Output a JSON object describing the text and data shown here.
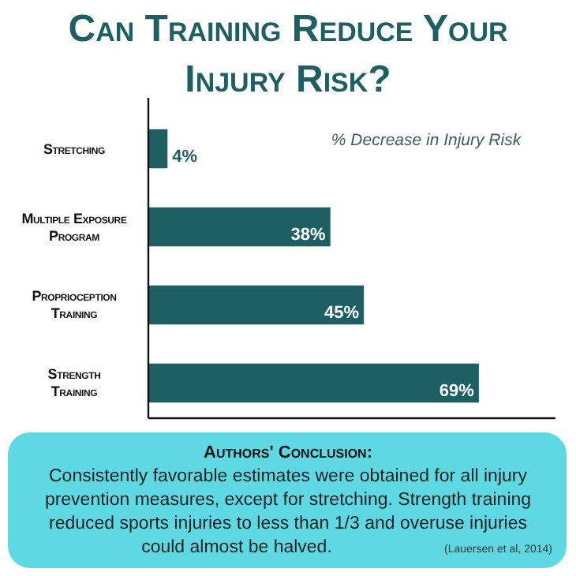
{
  "chart_data": {
    "type": "bar",
    "orientation": "horizontal",
    "title": "Can Training Reduce Your Injury Risk?",
    "categories": [
      "Stretching",
      "Multiple Exposure Program",
      "Proprioception Training",
      "Strength Training"
    ],
    "values": [
      4,
      38,
      45,
      69
    ],
    "value_labels": [
      "4%",
      "38%",
      "45%",
      "69%"
    ],
    "color": "#1e5f63",
    "xlim": [
      0,
      85
    ],
    "tick_labels": "y",
    "annotations": [
      "% Decrease in Injury Risk",
      "Authors' Conclusion:",
      "Consistently favorable estimates were obtained for all injury prevention measures, except for stretching. Strength training reduced sports injuries to less than 1/3 and overuse injuries could almost be halved.",
      "(Lauersen et al, 2014)"
    ]
  }
}
